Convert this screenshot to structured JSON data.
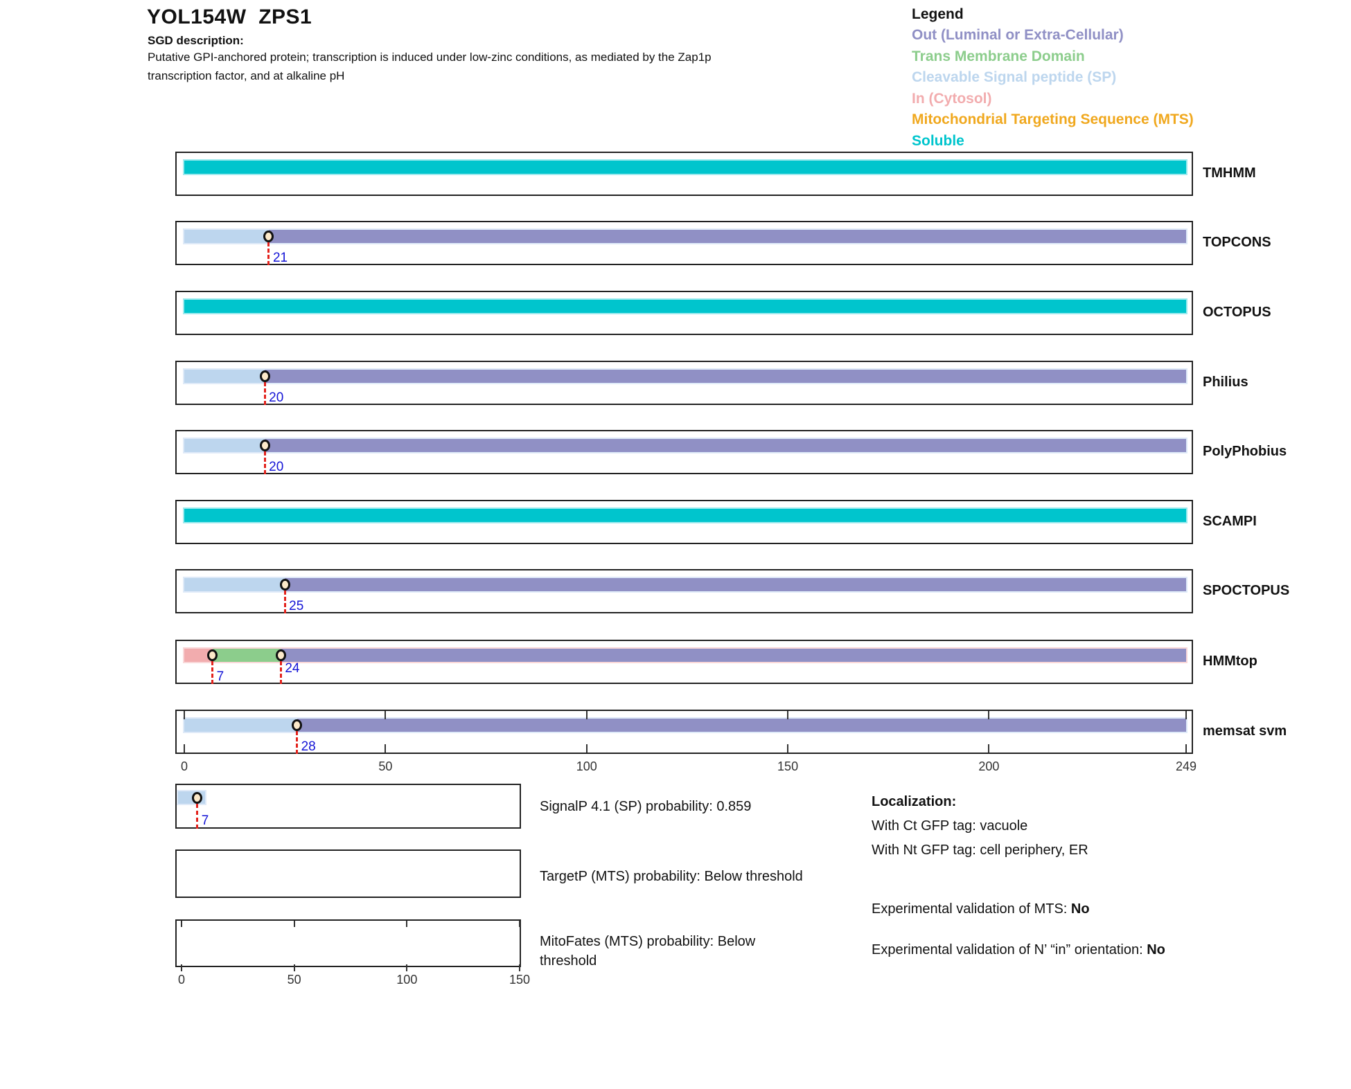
{
  "header": {
    "title": "YOL154W  ZPS1",
    "sgd_label": "SGD description:",
    "sgd_description": "Putative GPI-anchored protein; transcription is induced under low-zinc conditions, as mediated by the Zap1p transcription factor, and at alkaline pH"
  },
  "legend": {
    "title": "Legend",
    "items": [
      {
        "label": "Out (Luminal or Extra-Cellular)",
        "color_key": "Out"
      },
      {
        "label": "Trans Membrane Domain",
        "color_key": "TM"
      },
      {
        "label": "Cleavable Signal peptide (SP)",
        "color_key": "SP"
      },
      {
        "label": "In (Cytosol)",
        "color_key": "In"
      },
      {
        "label": "Mitochondrial Targeting Sequence (MTS)",
        "color_key": "MTS"
      },
      {
        "label": "Soluble",
        "color_key": "Soluble"
      }
    ]
  },
  "chart_data": {
    "type": "protein-topology-tracks",
    "sequence_length": 249,
    "axis_ticks": [
      0,
      50,
      100,
      150,
      200,
      249
    ],
    "colors": {
      "Out": {
        "fill": "#9090c5",
        "edge": "#c9c9e4"
      },
      "TM": {
        "fill": "#8ccd8c",
        "edge": "#c6e8c6"
      },
      "SP": {
        "fill": "#bdd6ee",
        "edge": "#dfeaf8"
      },
      "In": {
        "fill": "#f2acae",
        "edge": "#f9d7d8"
      },
      "MTS": {
        "fill": "#f0a81e",
        "edge": "#f8d492"
      },
      "Soluble": {
        "fill": "#00c5cd",
        "edge": "#9feaee"
      }
    },
    "marker_line_color": "#e3221c",
    "marker_label_color": "#1414d6",
    "tracks": [
      {
        "name": "TMHMM",
        "ticks": false,
        "segments": [
          {
            "type": "Soluble",
            "start": 0,
            "end": 249
          }
        ],
        "markers": []
      },
      {
        "name": "TOPCONS",
        "ticks": false,
        "segments": [
          {
            "type": "SP",
            "start": 0,
            "end": 21
          },
          {
            "type": "Out",
            "start": 21,
            "end": 249
          }
        ],
        "markers": [
          {
            "pos": 21,
            "label": "21",
            "label_pos": "bottom"
          }
        ]
      },
      {
        "name": "OCTOPUS",
        "ticks": false,
        "segments": [
          {
            "type": "Soluble",
            "start": 0,
            "end": 249
          }
        ],
        "markers": []
      },
      {
        "name": "Philius",
        "ticks": false,
        "segments": [
          {
            "type": "SP",
            "start": 0,
            "end": 20
          },
          {
            "type": "Out",
            "start": 20,
            "end": 249
          }
        ],
        "markers": [
          {
            "pos": 20,
            "label": "20",
            "label_pos": "bottom"
          }
        ]
      },
      {
        "name": "PolyPhobius",
        "ticks": false,
        "segments": [
          {
            "type": "SP",
            "start": 0,
            "end": 20
          },
          {
            "type": "Out",
            "start": 20,
            "end": 249
          }
        ],
        "markers": [
          {
            "pos": 20,
            "label": "20",
            "label_pos": "bottom"
          }
        ]
      },
      {
        "name": "SCAMPI",
        "ticks": false,
        "segments": [
          {
            "type": "Soluble",
            "start": 0,
            "end": 249
          }
        ],
        "markers": []
      },
      {
        "name": "SPOCTOPUS",
        "ticks": false,
        "segments": [
          {
            "type": "SP",
            "start": 0,
            "end": 25
          },
          {
            "type": "Out",
            "start": 25,
            "end": 249
          }
        ],
        "markers": [
          {
            "pos": 25,
            "label": "25",
            "label_pos": "bottom"
          }
        ]
      },
      {
        "name": "HMMtop",
        "ticks": false,
        "segments": [
          {
            "type": "In",
            "start": 0,
            "end": 7
          },
          {
            "type": "TM",
            "start": 7,
            "end": 24
          },
          {
            "type": "Out",
            "start": 24,
            "end": 249
          }
        ],
        "markers": [
          {
            "pos": 7,
            "label": "7",
            "label_pos": "bottom"
          },
          {
            "pos": 24,
            "label": "24",
            "label_pos": "mid"
          }
        ]
      },
      {
        "name": "memsat svm",
        "ticks": true,
        "segments": [
          {
            "type": "SP",
            "start": 0,
            "end": 28
          },
          {
            "type": "Out",
            "start": 28,
            "end": 249
          }
        ],
        "markers": [
          {
            "pos": 28,
            "label": "28",
            "label_pos": "bottom"
          }
        ]
      }
    ],
    "probability_tracks": {
      "axis_max": 150,
      "axis_ticks": [
        0,
        50,
        100,
        150
      ],
      "rows": [
        {
          "name": "SignalP",
          "label": "SignalP 4.1 (SP) probability: 0.859",
          "ticks": false,
          "segments": [
            {
              "type": "SP",
              "start": 0,
              "end": 10.5
            }
          ],
          "markers": [
            {
              "pos": 7,
              "label": "7",
              "label_pos": "bottom"
            }
          ]
        },
        {
          "name": "TargetP",
          "label": "TargetP (MTS) probability: Below threshold",
          "ticks": false,
          "segments": [],
          "markers": []
        },
        {
          "name": "MitoFates",
          "label": "MitoFates (MTS) probability: Below threshold",
          "ticks": true,
          "segments": [],
          "markers": []
        }
      ]
    }
  },
  "info": {
    "localization_title": "Localization:",
    "lines": [
      "With Ct GFP tag: vacuole",
      "With Nt GFP tag: cell periphery, ER"
    ],
    "mts_label": "Experimental validation of MTS: ",
    "mts_value": "No",
    "orientation_label": "Experimental validation of N’ “in” orientation: ",
    "orientation_value": "No"
  }
}
